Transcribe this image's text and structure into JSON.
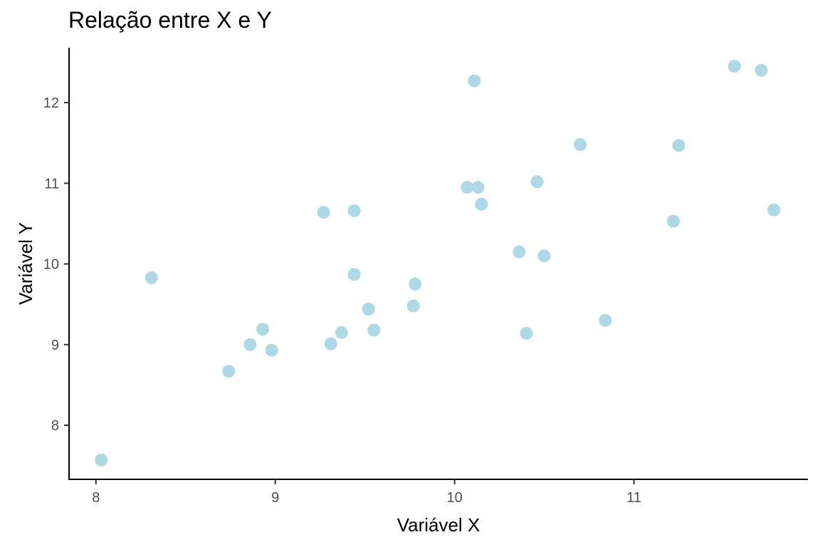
{
  "chart_data": {
    "type": "scatter",
    "title": "Relação entre X e Y",
    "xlabel": "Variável X",
    "ylabel": "Variável Y",
    "xlim": [
      7.85,
      11.97
    ],
    "ylim": [
      7.33,
      12.68
    ],
    "xticks": [
      8,
      9,
      10,
      11
    ],
    "yticks": [
      8,
      9,
      10,
      11,
      12
    ],
    "grid": false,
    "point_color": "#ADD8E6",
    "points": [
      {
        "x": 8.03,
        "y": 7.57
      },
      {
        "x": 8.31,
        "y": 9.83
      },
      {
        "x": 8.74,
        "y": 8.67
      },
      {
        "x": 8.86,
        "y": 9.0
      },
      {
        "x": 8.93,
        "y": 9.19
      },
      {
        "x": 8.98,
        "y": 8.93
      },
      {
        "x": 9.27,
        "y": 10.64
      },
      {
        "x": 9.31,
        "y": 9.01
      },
      {
        "x": 9.37,
        "y": 9.15
      },
      {
        "x": 9.44,
        "y": 10.66
      },
      {
        "x": 9.44,
        "y": 9.87
      },
      {
        "x": 9.52,
        "y": 9.44
      },
      {
        "x": 9.55,
        "y": 9.18
      },
      {
        "x": 9.77,
        "y": 9.48
      },
      {
        "x": 9.78,
        "y": 9.75
      },
      {
        "x": 10.07,
        "y": 10.95
      },
      {
        "x": 10.11,
        "y": 12.27
      },
      {
        "x": 10.13,
        "y": 10.95
      },
      {
        "x": 10.15,
        "y": 10.74
      },
      {
        "x": 10.36,
        "y": 10.15
      },
      {
        "x": 10.4,
        "y": 9.14
      },
      {
        "x": 10.46,
        "y": 11.02
      },
      {
        "x": 10.5,
        "y": 10.1
      },
      {
        "x": 10.7,
        "y": 11.48
      },
      {
        "x": 10.84,
        "y": 9.3
      },
      {
        "x": 11.22,
        "y": 10.53
      },
      {
        "x": 11.25,
        "y": 11.47
      },
      {
        "x": 11.56,
        "y": 12.45
      },
      {
        "x": 11.71,
        "y": 12.4
      },
      {
        "x": 11.78,
        "y": 10.67
      }
    ]
  }
}
